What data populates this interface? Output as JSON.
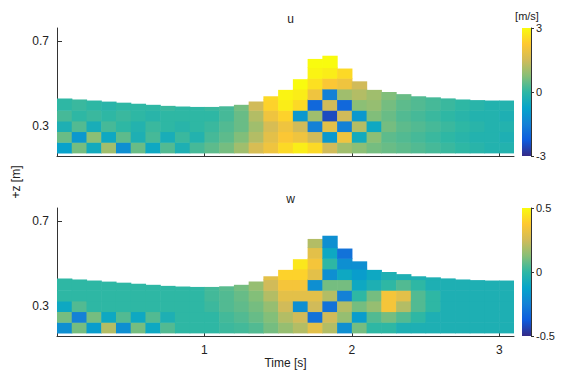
{
  "chart_data": {
    "type": "heatmap",
    "xlabel": "Time [s]",
    "ylabel": "+z [m]",
    "xlim": [
      0,
      3.1
    ],
    "xticks": [
      1,
      2,
      3
    ],
    "ylim": [
      0.16,
      0.76
    ],
    "yticks": [
      0.3,
      0.7
    ],
    "time": [
      0.05,
      0.15,
      0.25,
      0.35,
      0.45,
      0.55,
      0.65,
      0.75,
      0.85,
      0.95,
      1.05,
      1.15,
      1.25,
      1.35,
      1.45,
      1.55,
      1.65,
      1.75,
      1.85,
      1.95,
      2.05,
      2.15,
      2.25,
      2.35,
      2.45,
      2.55,
      2.65,
      2.75,
      2.85,
      2.95,
      3.05
    ],
    "z": [
      0.2,
      0.25,
      0.3,
      0.35,
      0.4,
      0.45,
      0.5,
      0.55,
      0.6
    ],
    "surface": [
      0.43,
      0.425,
      0.42,
      0.415,
      0.41,
      0.405,
      0.4,
      0.395,
      0.392,
      0.39,
      0.39,
      0.393,
      0.4,
      0.415,
      0.44,
      0.47,
      0.52,
      0.615,
      0.63,
      0.57,
      0.51,
      0.47,
      0.46,
      0.45,
      0.44,
      0.435,
      0.43,
      0.425,
      0.422,
      0.42,
      0.42
    ],
    "panels": [
      {
        "title": "u",
        "tick_labels": "y",
        "colorbar": {
          "label": "[m/s]",
          "range": [
            -3,
            3
          ],
          "ticks": [
            -3,
            0,
            3
          ]
        },
        "values": [
          [
            -0.8,
            0.5,
            -0.3,
            0.2,
            0.0,
            0.0,
            null,
            null,
            null
          ],
          [
            0.6,
            -1.0,
            0.3,
            0.0,
            0.1,
            null,
            null,
            null,
            null
          ],
          [
            -0.5,
            0.8,
            -0.4,
            0.1,
            0.0,
            null,
            null,
            null,
            null
          ],
          [
            1.0,
            -0.6,
            0.2,
            0.0,
            -0.1,
            null,
            null,
            null,
            null
          ],
          [
            -1.2,
            0.4,
            0.0,
            0.1,
            0.0,
            null,
            null,
            null,
            null
          ],
          [
            0.5,
            -0.3,
            -0.2,
            0.0,
            0.0,
            null,
            null,
            null,
            null
          ],
          [
            -0.6,
            0.2,
            0.1,
            -0.1,
            0.0,
            null,
            null,
            null,
            null
          ],
          [
            0.3,
            -0.4,
            0.0,
            0.0,
            0.1,
            null,
            null,
            null,
            null
          ],
          [
            -0.3,
            0.1,
            -0.1,
            0.0,
            0.0,
            null,
            null,
            null,
            null
          ],
          [
            0.2,
            -0.2,
            0.0,
            0.0,
            0.0,
            null,
            null,
            null,
            null
          ],
          [
            0.4,
            0.2,
            0.1,
            0.0,
            0.1,
            null,
            null,
            null,
            null
          ],
          [
            0.6,
            0.4,
            0.3,
            0.2,
            0.2,
            null,
            null,
            null,
            null
          ],
          [
            1.0,
            0.7,
            0.5,
            0.5,
            0.6,
            null,
            null,
            null,
            null
          ],
          [
            1.6,
            1.2,
            1.0,
            1.2,
            1.5,
            null,
            null,
            null,
            null
          ],
          [
            2.0,
            1.8,
            1.6,
            2.0,
            2.4,
            2.5,
            null,
            null,
            null
          ],
          [
            2.5,
            2.2,
            2.0,
            2.4,
            2.8,
            2.9,
            null,
            null,
            null
          ],
          [
            2.8,
            2.0,
            1.5,
            -1.0,
            2.5,
            2.8,
            3.0,
            null,
            null
          ],
          [
            2.5,
            1.5,
            -1.5,
            1.0,
            -2.0,
            2.0,
            2.6,
            2.9,
            3.0
          ],
          [
            1.5,
            -1.0,
            1.8,
            -2.5,
            1.5,
            -1.5,
            2.2,
            2.8,
            3.0
          ],
          [
            1.0,
            2.0,
            -1.5,
            1.5,
            -2.0,
            1.0,
            2.0,
            2.5,
            null
          ],
          [
            0.8,
            -0.5,
            1.2,
            -1.0,
            0.8,
            1.2,
            1.5,
            null,
            null
          ],
          [
            0.6,
            0.8,
            -0.6,
            0.7,
            0.9,
            1.0,
            null,
            null,
            null
          ],
          [
            0.5,
            0.4,
            0.6,
            0.5,
            0.6,
            0.7,
            null,
            null,
            null
          ],
          [
            0.4,
            0.3,
            0.4,
            0.3,
            0.4,
            0.5,
            null,
            null,
            null
          ],
          [
            0.3,
            0.2,
            0.3,
            0.2,
            0.3,
            0.3,
            null,
            null,
            null
          ],
          [
            0.2,
            0.1,
            0.2,
            0.1,
            0.2,
            0.2,
            null,
            null,
            null
          ],
          [
            0.1,
            0.0,
            0.1,
            0.0,
            0.1,
            0.1,
            null,
            null,
            null
          ],
          [
            0.0,
            -0.1,
            0.0,
            -0.1,
            0.0,
            null,
            null,
            null,
            null
          ],
          [
            -0.1,
            -0.2,
            -0.1,
            -0.2,
            -0.1,
            null,
            null,
            null,
            null
          ],
          [
            -0.2,
            -0.2,
            -0.2,
            -0.2,
            -0.2,
            null,
            null,
            null,
            null
          ],
          [
            -0.2,
            -0.3,
            -0.2,
            -0.3,
            -0.2,
            null,
            null,
            null,
            null
          ]
        ]
      },
      {
        "title": "w",
        "colorbar": {
          "range": [
            -0.5,
            0.5
          ],
          "ticks": [
            -0.5,
            0,
            0.5
          ]
        },
        "values": [
          [
            -0.2,
            0.1,
            -0.1,
            0.0,
            0.0,
            0.0,
            null,
            null,
            null
          ],
          [
            0.1,
            -0.25,
            0.05,
            0.0,
            0.0,
            null,
            null,
            null,
            null
          ],
          [
            -0.15,
            0.1,
            0.0,
            0.0,
            0.0,
            null,
            null,
            null,
            null
          ],
          [
            0.2,
            -0.1,
            0.0,
            0.0,
            0.0,
            null,
            null,
            null,
            null
          ],
          [
            -0.2,
            0.05,
            0.0,
            0.0,
            0.0,
            null,
            null,
            null,
            null
          ],
          [
            0.1,
            -0.1,
            0.0,
            0.0,
            0.0,
            null,
            null,
            null,
            null
          ],
          [
            -0.1,
            0.05,
            0.0,
            0.0,
            0.0,
            null,
            null,
            null,
            null
          ],
          [
            0.05,
            -0.05,
            0.0,
            0.0,
            0.0,
            null,
            null,
            null,
            null
          ],
          [
            0.0,
            0.0,
            0.0,
            0.0,
            0.0,
            null,
            null,
            null,
            null
          ],
          [
            0.0,
            0.0,
            0.0,
            0.0,
            0.0,
            null,
            null,
            null,
            null
          ],
          [
            0.0,
            0.0,
            0.02,
            0.03,
            0.03,
            null,
            null,
            null,
            null
          ],
          [
            0.02,
            0.03,
            0.05,
            0.05,
            0.06,
            null,
            null,
            null,
            null
          ],
          [
            0.03,
            0.05,
            0.07,
            0.08,
            0.1,
            null,
            null,
            null,
            null
          ],
          [
            0.05,
            0.08,
            0.1,
            0.12,
            0.15,
            null,
            null,
            null,
            null
          ],
          [
            0.1,
            0.12,
            0.15,
            0.2,
            0.25,
            0.3,
            null,
            null,
            null
          ],
          [
            0.15,
            0.2,
            0.25,
            0.3,
            0.35,
            0.4,
            null,
            null,
            null
          ],
          [
            0.2,
            0.25,
            -0.2,
            0.3,
            0.35,
            0.4,
            0.45,
            null,
            null
          ],
          [
            0.3,
            -0.3,
            0.25,
            0.3,
            -0.2,
            0.3,
            0.35,
            0.3,
            0.2
          ],
          [
            0.2,
            0.25,
            -0.3,
            0.2,
            0.1,
            -0.2,
            0.0,
            -0.1,
            -0.2
          ],
          [
            -0.2,
            0.15,
            0.2,
            -0.25,
            0.1,
            -0.1,
            -0.2,
            -0.3,
            null
          ],
          [
            0.1,
            -0.15,
            0.1,
            0.0,
            -0.1,
            -0.15,
            -0.2,
            null,
            null
          ],
          [
            0.0,
            0.05,
            0.15,
            0.1,
            -0.05,
            -0.1,
            null,
            null,
            null
          ],
          [
            0.0,
            0.1,
            0.35,
            0.35,
            0.0,
            -0.05,
            null,
            null,
            null
          ],
          [
            -0.05,
            0.05,
            0.2,
            0.3,
            0.05,
            -0.05,
            null,
            null,
            null
          ],
          [
            -0.05,
            0.0,
            0.05,
            0.05,
            0.0,
            -0.05,
            null,
            null,
            null
          ],
          [
            -0.05,
            -0.05,
            0.0,
            0.0,
            -0.05,
            -0.05,
            null,
            null,
            null
          ],
          [
            -0.05,
            -0.05,
            -0.05,
            -0.05,
            -0.05,
            -0.05,
            null,
            null,
            null
          ],
          [
            -0.05,
            -0.05,
            -0.05,
            -0.05,
            -0.05,
            null,
            null,
            null,
            null
          ],
          [
            -0.05,
            -0.05,
            -0.05,
            -0.05,
            -0.05,
            null,
            null,
            null,
            null
          ],
          [
            -0.05,
            -0.05,
            -0.05,
            -0.05,
            -0.05,
            null,
            null,
            null,
            null
          ],
          [
            -0.05,
            -0.05,
            -0.05,
            -0.05,
            -0.05,
            null,
            null,
            null,
            null
          ]
        ]
      }
    ]
  }
}
